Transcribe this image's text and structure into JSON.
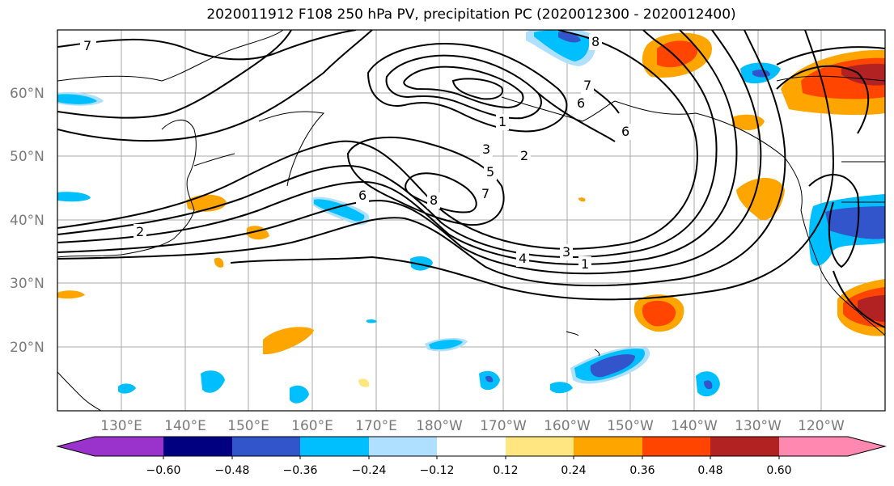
{
  "title": "2020011912 F108 250 hPa PV, precipitation PC (2020012300 - 2020012400)",
  "lat_labels": [
    "60°N",
    "50°N",
    "40°N",
    "30°N",
    "20°N"
  ],
  "lon_labels": [
    "130°E",
    "140°E",
    "150°E",
    "160°E",
    "170°E",
    "180°W",
    "170°W",
    "160°W",
    "150°W",
    "140°W",
    "130°W",
    "120°W"
  ],
  "contour_labels": [
    "7",
    "1",
    "3",
    "2",
    "5",
    "6",
    "7",
    "8",
    "2",
    "6",
    "4",
    "3",
    "1",
    "7",
    "8",
    "6"
  ],
  "colorbar": {
    "colors": [
      "#9933cc",
      "#000080",
      "#3355cc",
      "#00bfff",
      "#b0e0ff",
      "#ffffff",
      "#ffe680",
      "#ffa500",
      "#ff4500",
      "#b22222",
      "#ff88b0"
    ],
    "labels": [
      "−0.60",
      "−0.48",
      "−0.36",
      "−0.24",
      "−0.12",
      "0.12",
      "0.24",
      "0.36",
      "0.48",
      "0.60"
    ]
  }
}
